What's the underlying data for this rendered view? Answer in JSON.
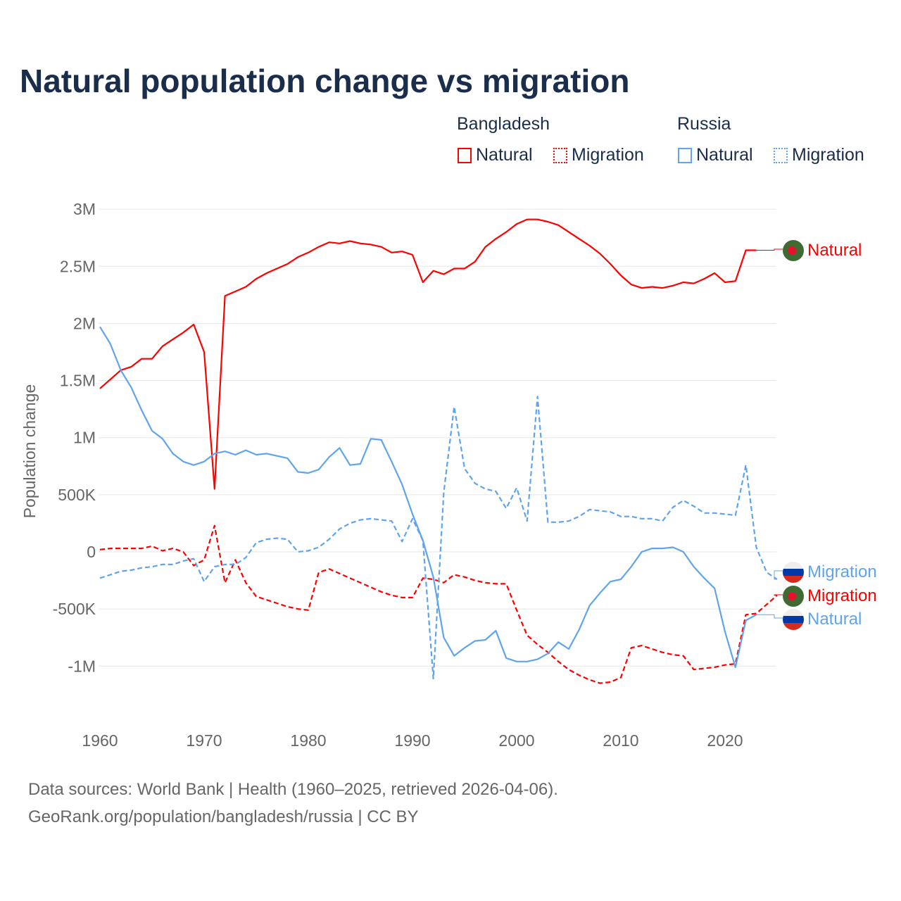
{
  "title": "Natural population change vs migration",
  "legend": {
    "groups": [
      {
        "name": "Bangladesh",
        "items": [
          "Natural",
          "Migration"
        ]
      },
      {
        "name": "Russia",
        "items": [
          "Natural",
          "Migration"
        ]
      }
    ]
  },
  "colors": {
    "bangladesh": "#ff0000",
    "russia": "#5fa4ec",
    "text": "#1a2e4c"
  },
  "footer": {
    "line1": "Data sources: World Bank | Health (1960–2025, retrieved 2026-04-06).",
    "line2": "GeoRank.org/population/bangladesh/russia | CC BY"
  },
  "chart_data": {
    "type": "line",
    "title": "Natural population change vs migration",
    "xlabel": "",
    "ylabel": "Population change",
    "xlim": [
      1960,
      2025
    ],
    "ylim": [
      -1.3,
      3.0
    ],
    "xticks": [
      1960,
      1970,
      1980,
      1990,
      2000,
      2010,
      2020
    ],
    "yticks": [
      {
        "v": 3,
        "label": "3M"
      },
      {
        "v": 2.5,
        "label": "2.5M"
      },
      {
        "v": 2,
        "label": "2M"
      },
      {
        "v": 1.5,
        "label": "1.5M"
      },
      {
        "v": 1,
        "label": "1M"
      },
      {
        "v": 0.5,
        "label": "500K"
      },
      {
        "v": 0,
        "label": "0"
      },
      {
        "v": -0.5,
        "label": "-500K"
      },
      {
        "v": -1,
        "label": "-1M"
      }
    ],
    "units": "millions",
    "series": [
      {
        "name": "Natural",
        "country": "Bangladesh",
        "color": "#ff0000",
        "dash": false,
        "start": 1960,
        "values": [
          1.43,
          1.51,
          1.59,
          1.62,
          1.69,
          1.69,
          1.8,
          1.86,
          1.92,
          1.99,
          1.75,
          0.55,
          2.24,
          2.28,
          2.32,
          2.39,
          2.44,
          2.48,
          2.52,
          2.58,
          2.62,
          2.67,
          2.71,
          2.7,
          2.72,
          2.7,
          2.69,
          2.67,
          2.62,
          2.63,
          2.6,
          2.36,
          2.46,
          2.43,
          2.48,
          2.48,
          2.54,
          2.67,
          2.74,
          2.8,
          2.87,
          2.91,
          2.91,
          2.89,
          2.86,
          2.8,
          2.74,
          2.68,
          2.61,
          2.52,
          2.42,
          2.34,
          2.31,
          2.32,
          2.31,
          2.33,
          2.36,
          2.35,
          2.39,
          2.44,
          2.36,
          2.37,
          2.64,
          2.64
        ],
        "label": "Natural",
        "label_value": 2.64
      },
      {
        "name": "Migration",
        "country": "Bangladesh",
        "color": "#ff0000",
        "dash": true,
        "start": 1960,
        "values": [
          0.02,
          0.03,
          0.03,
          0.03,
          0.03,
          0.05,
          0.01,
          0.03,
          0.0,
          -0.12,
          -0.07,
          0.23,
          -0.27,
          -0.07,
          -0.27,
          -0.39,
          -0.42,
          -0.45,
          -0.48,
          -0.5,
          -0.51,
          -0.18,
          -0.15,
          -0.19,
          -0.23,
          -0.27,
          -0.31,
          -0.35,
          -0.38,
          -0.4,
          -0.4,
          -0.23,
          -0.24,
          -0.27,
          -0.2,
          -0.22,
          -0.25,
          -0.27,
          -0.28,
          -0.28,
          -0.51,
          -0.73,
          -0.81,
          -0.88,
          -0.96,
          -1.03,
          -1.08,
          -1.12,
          -1.15,
          -1.14,
          -1.1,
          -0.84,
          -0.82,
          -0.85,
          -0.88,
          -0.9,
          -0.91,
          -1.03,
          -1.02,
          -1.01,
          -0.99,
          -0.98,
          -0.55,
          -0.54,
          -0.46,
          -0.38
        ],
        "label": "Migration",
        "label_value": -0.38
      },
      {
        "name": "Natural",
        "country": "Russia",
        "color": "#5fa4ec",
        "dash": false,
        "start": 1960,
        "values": [
          1.97,
          1.82,
          1.59,
          1.44,
          1.24,
          1.06,
          0.99,
          0.86,
          0.79,
          0.76,
          0.79,
          0.86,
          0.88,
          0.85,
          0.89,
          0.85,
          0.86,
          0.84,
          0.82,
          0.7,
          0.69,
          0.72,
          0.83,
          0.91,
          0.76,
          0.77,
          0.99,
          0.98,
          0.79,
          0.59,
          0.33,
          0.1,
          -0.22,
          -0.75,
          -0.91,
          -0.84,
          -0.78,
          -0.77,
          -0.69,
          -0.93,
          -0.96,
          -0.96,
          -0.94,
          -0.89,
          -0.79,
          -0.85,
          -0.68,
          -0.47,
          -0.36,
          -0.26,
          -0.24,
          -0.13,
          0.0,
          0.03,
          0.03,
          0.04,
          0.0,
          -0.13,
          -0.23,
          -0.32,
          -0.7,
          -1.01,
          -0.6,
          -0.55
        ],
        "label": "Natural",
        "label_value": -0.55
      },
      {
        "name": "Migration",
        "country": "Russia",
        "color": "#5fa4ec",
        "dash": true,
        "start": 1960,
        "values": [
          -0.23,
          -0.2,
          -0.17,
          -0.16,
          -0.14,
          -0.13,
          -0.11,
          -0.11,
          -0.08,
          -0.06,
          -0.26,
          -0.13,
          -0.11,
          -0.11,
          -0.05,
          0.08,
          0.11,
          0.12,
          0.11,
          0.0,
          0.01,
          0.04,
          0.11,
          0.2,
          0.25,
          0.28,
          0.29,
          0.28,
          0.27,
          0.09,
          0.29,
          0.1,
          -1.11,
          0.52,
          1.27,
          0.73,
          0.6,
          0.55,
          0.53,
          0.38,
          0.56,
          0.27,
          1.36,
          0.26,
          0.26,
          0.27,
          0.31,
          0.37,
          0.36,
          0.35,
          0.31,
          0.31,
          0.29,
          0.29,
          0.27,
          0.39,
          0.45,
          0.4,
          0.34,
          0.34,
          0.33,
          0.32,
          0.76,
          0.04,
          -0.18,
          -0.24
        ],
        "label": "Migration",
        "label_value": -0.24
      }
    ]
  }
}
